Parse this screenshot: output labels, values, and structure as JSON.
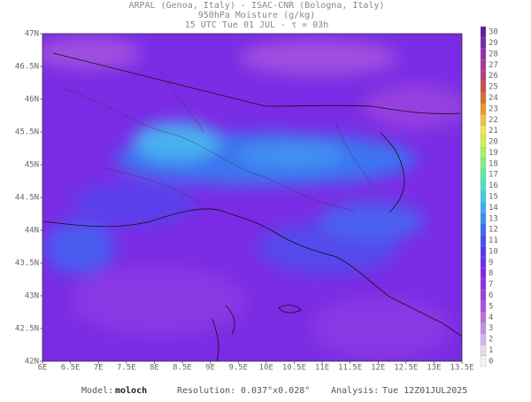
{
  "header": {
    "lines": [
      "ARPAL (Genoa, Italy)  -  ISAC-CNR (Bologna, Italy)",
      "950hPa Moisture (g/kg)",
      "15 UTC Tue 01 JUL  -  τ = 03h"
    ]
  },
  "map": {
    "x_ticks": [
      "6E",
      "6.5E",
      "7E",
      "7.5E",
      "8E",
      "8.5E",
      "9E",
      "9.5E",
      "10E",
      "10.5E",
      "11E",
      "11.5E",
      "12E",
      "12.5E",
      "13E",
      "13.5E"
    ],
    "y_ticks": [
      "47N",
      "46.5N",
      "46N",
      "45.5N",
      "45N",
      "44.5N",
      "44N",
      "43.5N",
      "43N",
      "42.5N",
      "42N"
    ]
  },
  "colorbar": {
    "levels": [
      0,
      1,
      2,
      3,
      4,
      5,
      6,
      7,
      8,
      9,
      10,
      11,
      12,
      13,
      14,
      15,
      16,
      17,
      18,
      19,
      20,
      21,
      22,
      23,
      24,
      25,
      26,
      27,
      28,
      29,
      30
    ],
    "colors": [
      "#f4f4f4",
      "#e6d8f4",
      "#d4b4ec",
      "#c890e4",
      "#bc6edc",
      "#b050d8",
      "#a03cdc",
      "#9030e0",
      "#8028e4",
      "#6c2ce8",
      "#5838ec",
      "#4450f0",
      "#3c6cf0",
      "#3c8cf0",
      "#40acf0",
      "#48c8e8",
      "#50dcc8",
      "#60e8a0",
      "#80f078",
      "#a8f060",
      "#d0f050",
      "#f0e848",
      "#f0c040",
      "#e89838",
      "#d87030",
      "#c85050",
      "#b84078",
      "#a83898",
      "#9030a8",
      "#7828a8",
      "#602098"
    ]
  },
  "footer": {
    "model_label": "Model:",
    "model": "moloch",
    "resolution_label": "Resolution:",
    "resolution": "0.037°x0.028°",
    "analysis_label": "Analysis:",
    "analysis": "Tue 12Z01JUL2025"
  }
}
